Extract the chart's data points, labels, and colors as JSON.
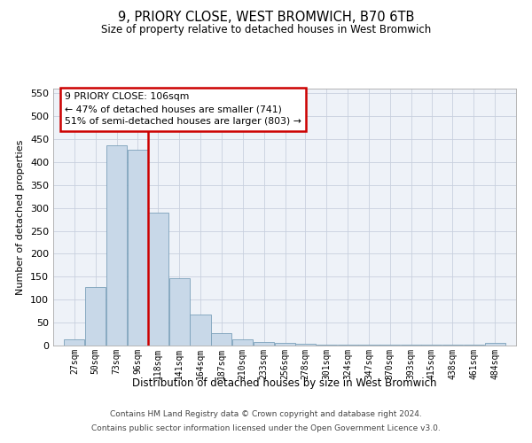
{
  "title": "9, PRIORY CLOSE, WEST BROMWICH, B70 6TB",
  "subtitle": "Size of property relative to detached houses in West Bromwich",
  "xlabel": "Distribution of detached houses by size in West Bromwich",
  "ylabel": "Number of detached properties",
  "footer_line1": "Contains HM Land Registry data © Crown copyright and database right 2024.",
  "footer_line2": "Contains public sector information licensed under the Open Government Licence v3.0.",
  "annotation_text": "9 PRIORY CLOSE: 106sqm\n← 47% of detached houses are smaller (741)\n51% of semi-detached houses are larger (803) →",
  "red_line_x": 107.5,
  "bar_color": "#c8d8e8",
  "bar_edge_color": "#7ba0ba",
  "red_line_color": "#cc0000",
  "annotation_box_color": "#cc0000",
  "grid_color": "#c8d0de",
  "background_color": "#eef2f8",
  "categories": [
    27,
    50,
    73,
    96,
    118,
    141,
    164,
    187,
    210,
    233,
    256,
    278,
    301,
    324,
    347,
    370,
    393,
    415,
    438,
    461,
    484
  ],
  "bar_heights": [
    13,
    127,
    437,
    427,
    290,
    147,
    68,
    27,
    13,
    8,
    5,
    3,
    2,
    1,
    1,
    1,
    1,
    1,
    1,
    1,
    5
  ],
  "ylim": [
    0,
    560
  ],
  "yticks": [
    0,
    50,
    100,
    150,
    200,
    250,
    300,
    350,
    400,
    450,
    500,
    550
  ],
  "bin_width": 23
}
